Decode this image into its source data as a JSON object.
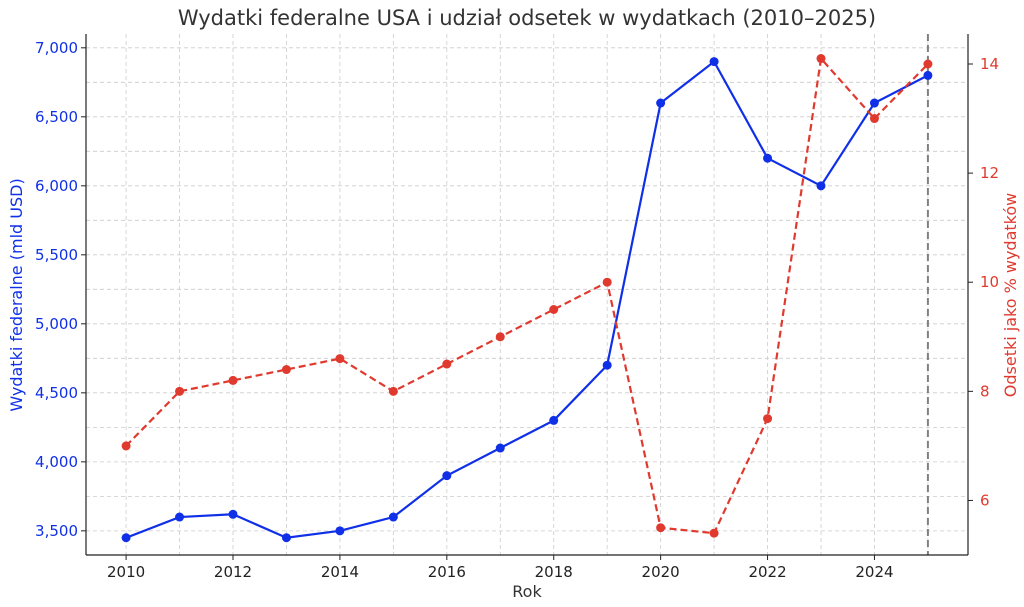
{
  "chart_data": {
    "type": "line",
    "title": "Wydatki federalne USA i udział odsetek w wydatkach (2010–2025)",
    "xlabel": "Rok",
    "ylabel_left": "Wydatki federalne (mld USD)",
    "ylabel_right": "Odsetki jako % wydatków",
    "x": [
      2010,
      2011,
      2012,
      2013,
      2014,
      2015,
      2016,
      2017,
      2018,
      2019,
      2020,
      2021,
      2022,
      2023,
      2024,
      2025
    ],
    "xlim": [
      2009.25,
      2025.75
    ],
    "x_ticks": [
      2010,
      2012,
      2014,
      2016,
      2018,
      2020,
      2022,
      2024
    ],
    "x_tick_labels": [
      "2010",
      "2012",
      "2014",
      "2016",
      "2018",
      "2020",
      "2022",
      "2024"
    ],
    "ylim_left": [
      3325,
      7100
    ],
    "y_ticks_left": [
      3500,
      4000,
      4500,
      5000,
      5500,
      6000,
      6500,
      7000
    ],
    "y_tick_labels_left": [
      "3,500",
      "4,000",
      "4,500",
      "5,000",
      "5,500",
      "6,000",
      "6,500",
      "7,000"
    ],
    "ylim_right": [
      5.0,
      14.55
    ],
    "y_ticks_right": [
      6,
      8,
      10,
      12,
      14
    ],
    "y_tick_labels_right": [
      "6",
      "8",
      "10",
      "12",
      "14"
    ],
    "grid": true,
    "vline_x": 2025,
    "series": [
      {
        "axis": "left",
        "color": "#1030e8",
        "style": "solid",
        "values": [
          3450,
          3600,
          3620,
          3450,
          3500,
          3600,
          3900,
          4100,
          4300,
          4700,
          6600,
          6900,
          6200,
          6000,
          6600,
          6800
        ]
      },
      {
        "axis": "right",
        "color": "#e03a2f",
        "style": "dashed",
        "values": [
          7.0,
          8.0,
          8.2,
          8.4,
          8.6,
          8.0,
          8.5,
          9.0,
          9.5,
          10.0,
          5.5,
          5.4,
          7.5,
          14.1,
          13.0,
          14.0
        ]
      }
    ],
    "colors": {
      "left_axis": "#1030e8",
      "right_axis": "#e03a2f",
      "vline": "#808080",
      "grid": "#cccccc"
    }
  }
}
